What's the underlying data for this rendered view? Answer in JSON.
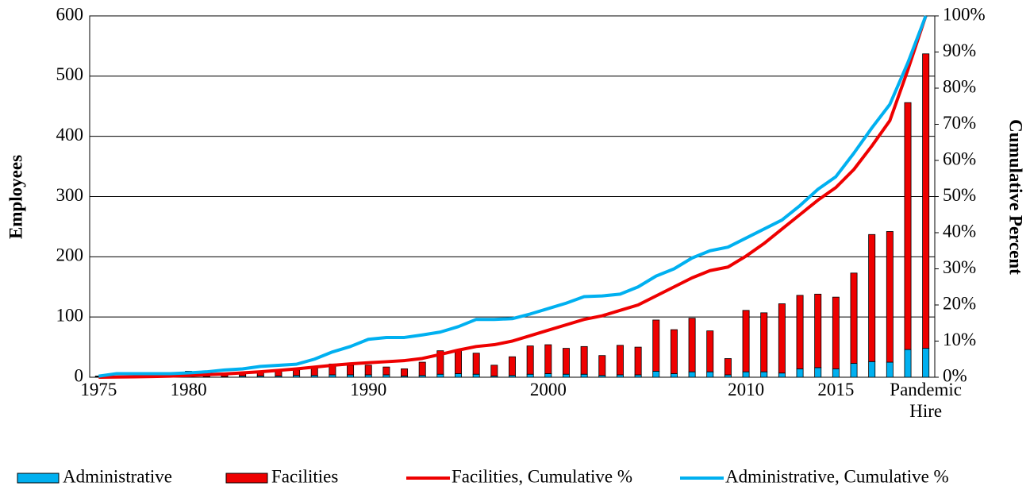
{
  "chart_data": {
    "type": "bar",
    "y_label": "Employees",
    "y2_label": "Cumulative Percent",
    "categories": [
      "1975",
      null,
      null,
      null,
      null,
      "1980",
      null,
      null,
      null,
      null,
      null,
      null,
      null,
      null,
      null,
      "1990",
      null,
      null,
      null,
      null,
      null,
      null,
      null,
      null,
      null,
      "2000",
      null,
      null,
      null,
      null,
      null,
      null,
      null,
      null,
      null,
      null,
      "2010",
      null,
      null,
      null,
      null,
      "2015",
      null,
      null,
      null,
      null,
      "Pandemic Hire"
    ],
    "series": [
      {
        "name": "Administrative",
        "type": "bar",
        "color": "#00b0f0",
        "values": [
          1,
          0,
          0,
          0,
          1,
          2,
          1,
          1,
          2,
          2,
          2,
          3,
          3,
          4,
          4,
          4,
          4,
          2,
          3,
          5,
          6,
          5,
          2,
          3,
          5,
          6,
          5,
          5,
          3,
          4,
          4,
          10,
          6,
          9,
          9,
          4,
          9,
          9,
          7,
          14,
          16,
          14,
          23,
          26,
          25,
          46,
          48
        ]
      },
      {
        "name": "Facilities",
        "type": "bar",
        "color": "#ee0000",
        "values": [
          1,
          1,
          1,
          1,
          1,
          8,
          2,
          3,
          4,
          6,
          8,
          9,
          12,
          18,
          16,
          16,
          13,
          12,
          22,
          39,
          39,
          35,
          18,
          31,
          47,
          48,
          43,
          46,
          33,
          49,
          46,
          85,
          73,
          89,
          68,
          27,
          102,
          98,
          115,
          122,
          122,
          119,
          150,
          211,
          217,
          410,
          489
        ]
      },
      {
        "name": "Facilities, Cumulative %",
        "type": "line",
        "axis": "y2",
        "color": "#ee0000",
        "values": [
          0,
          0.05,
          0.1,
          0.2,
          0.3,
          0.5,
          0.7,
          0.9,
          1.2,
          1.5,
          1.9,
          2.3,
          2.8,
          3.3,
          3.7,
          4.0,
          4.3,
          4.6,
          5.2,
          6.3,
          7.5,
          8.5,
          9.0,
          10,
          11.5,
          13,
          14.5,
          16,
          17,
          18.5,
          20,
          22.5,
          25,
          27.5,
          29.5,
          30.5,
          33.5,
          37,
          41,
          45,
          49,
          52.5,
          57.5,
          64,
          71,
          85,
          100
        ]
      },
      {
        "name": "Administrative, Cumulative %",
        "type": "line",
        "axis": "y2",
        "color": "#00b0f0",
        "values": [
          0.3,
          1,
          1,
          1,
          1,
          1.2,
          1.5,
          2,
          2.3,
          3,
          3.3,
          3.6,
          5,
          7,
          8.5,
          10.5,
          11,
          11,
          11.7,
          12.5,
          14,
          16,
          16,
          16.2,
          17.5,
          19,
          20.5,
          22.3,
          22.5,
          23,
          25,
          28,
          30,
          33,
          35,
          36,
          38.5,
          41,
          43.5,
          47.5,
          52,
          55.5,
          62,
          69,
          75.5,
          87,
          100
        ]
      }
    ],
    "ylim": [
      0,
      600
    ],
    "yticks": [
      0,
      100,
      200,
      300,
      400,
      500,
      600
    ],
    "y2lim": [
      0,
      100
    ],
    "y2ticks": [
      {
        "value": 0,
        "label": "0%"
      },
      {
        "value": 10,
        "label": "10%"
      },
      {
        "value": 20,
        "label": "20%"
      },
      {
        "value": 30,
        "label": "30%"
      },
      {
        "value": 40,
        "label": "40%"
      },
      {
        "value": 50,
        "label": "50%"
      },
      {
        "value": 60,
        "label": "60%"
      },
      {
        "value": 70,
        "label": "70%"
      },
      {
        "value": 80,
        "label": "80%"
      },
      {
        "value": 90,
        "label": "90%"
      },
      {
        "value": 100,
        "label": "100%"
      }
    ],
    "grid": true,
    "legend": "bottom"
  }
}
